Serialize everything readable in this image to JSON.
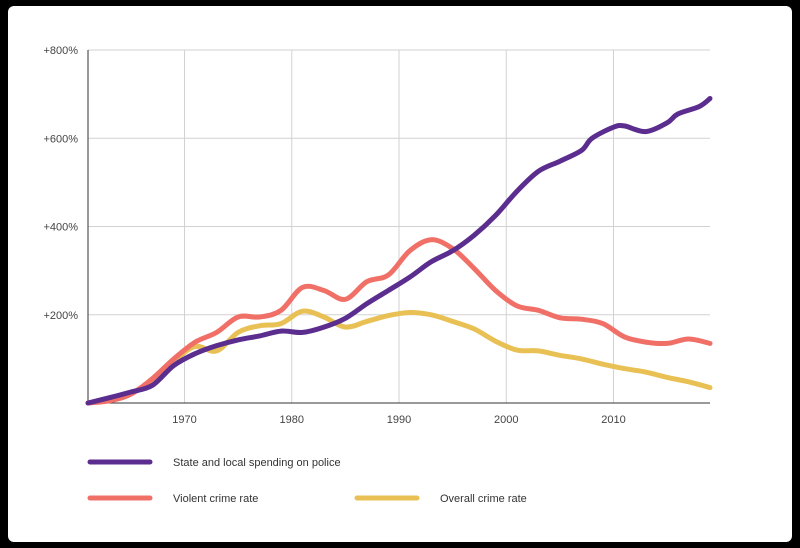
{
  "chart_data": {
    "type": "line",
    "title": "",
    "xlabel": "",
    "ylabel": "",
    "xlim": [
      1961,
      2019
    ],
    "ylim": [
      0,
      800
    ],
    "x_ticks": [
      1970,
      1980,
      1990,
      2000,
      2010
    ],
    "y_ticks": [
      200,
      400,
      600,
      800
    ],
    "x_tick_labels": [
      "1970",
      "1980",
      "1990",
      "2000",
      "2010"
    ],
    "y_tick_labels": [
      "+200%",
      "+400%",
      "+600%",
      "+800%"
    ],
    "grid": true,
    "legend_position": "bottom",
    "series": [
      {
        "name": "State and local spending on police",
        "color": "#5b2d8e",
        "points": [
          [
            1961,
            0
          ],
          [
            1963,
            12
          ],
          [
            1965,
            25
          ],
          [
            1967,
            40
          ],
          [
            1969,
            85
          ],
          [
            1971,
            112
          ],
          [
            1973,
            130
          ],
          [
            1975,
            143
          ],
          [
            1977,
            152
          ],
          [
            1979,
            163
          ],
          [
            1981,
            160
          ],
          [
            1983,
            172
          ],
          [
            1985,
            192
          ],
          [
            1987,
            225
          ],
          [
            1989,
            255
          ],
          [
            1991,
            285
          ],
          [
            1993,
            320
          ],
          [
            1995,
            345
          ],
          [
            1997,
            380
          ],
          [
            1999,
            425
          ],
          [
            2001,
            480
          ],
          [
            2003,
            525
          ],
          [
            2005,
            548
          ],
          [
            2007,
            572
          ],
          [
            2008,
            600
          ],
          [
            2010,
            625
          ],
          [
            2011,
            628
          ],
          [
            2013,
            615
          ],
          [
            2015,
            635
          ],
          [
            2016,
            655
          ],
          [
            2018,
            672
          ],
          [
            2019,
            690
          ]
        ]
      },
      {
        "name": "Violent crime rate",
        "color": "#f07068",
        "points": [
          [
            1961,
            0
          ],
          [
            1963,
            5
          ],
          [
            1965,
            20
          ],
          [
            1967,
            55
          ],
          [
            1969,
            100
          ],
          [
            1971,
            138
          ],
          [
            1973,
            160
          ],
          [
            1975,
            195
          ],
          [
            1977,
            195
          ],
          [
            1979,
            210
          ],
          [
            1981,
            262
          ],
          [
            1983,
            255
          ],
          [
            1985,
            235
          ],
          [
            1987,
            275
          ],
          [
            1989,
            290
          ],
          [
            1991,
            345
          ],
          [
            1993,
            370
          ],
          [
            1995,
            350
          ],
          [
            1997,
            305
          ],
          [
            1999,
            255
          ],
          [
            2001,
            220
          ],
          [
            2003,
            210
          ],
          [
            2005,
            193
          ],
          [
            2007,
            190
          ],
          [
            2009,
            180
          ],
          [
            2011,
            150
          ],
          [
            2013,
            138
          ],
          [
            2015,
            135
          ],
          [
            2017,
            145
          ],
          [
            2019,
            135
          ]
        ]
      },
      {
        "name": "Overall crime rate",
        "color": "#e8c054",
        "points": [
          [
            1961,
            0
          ],
          [
            1963,
            8
          ],
          [
            1965,
            22
          ],
          [
            1967,
            52
          ],
          [
            1969,
            95
          ],
          [
            1971,
            128
          ],
          [
            1973,
            118
          ],
          [
            1975,
            160
          ],
          [
            1977,
            175
          ],
          [
            1979,
            180
          ],
          [
            1981,
            208
          ],
          [
            1983,
            195
          ],
          [
            1985,
            172
          ],
          [
            1987,
            185
          ],
          [
            1989,
            198
          ],
          [
            1991,
            205
          ],
          [
            1993,
            200
          ],
          [
            1995,
            185
          ],
          [
            1997,
            168
          ],
          [
            1999,
            140
          ],
          [
            2001,
            120
          ],
          [
            2003,
            118
          ],
          [
            2005,
            108
          ],
          [
            2007,
            100
          ],
          [
            2009,
            88
          ],
          [
            2011,
            78
          ],
          [
            2013,
            70
          ],
          [
            2015,
            58
          ],
          [
            2017,
            48
          ],
          [
            2019,
            35
          ]
        ]
      }
    ]
  },
  "legend": {
    "spending_label": "State and local spending on police",
    "violent_label": "Violent crime rate",
    "overall_label": "Overall crime rate"
  }
}
